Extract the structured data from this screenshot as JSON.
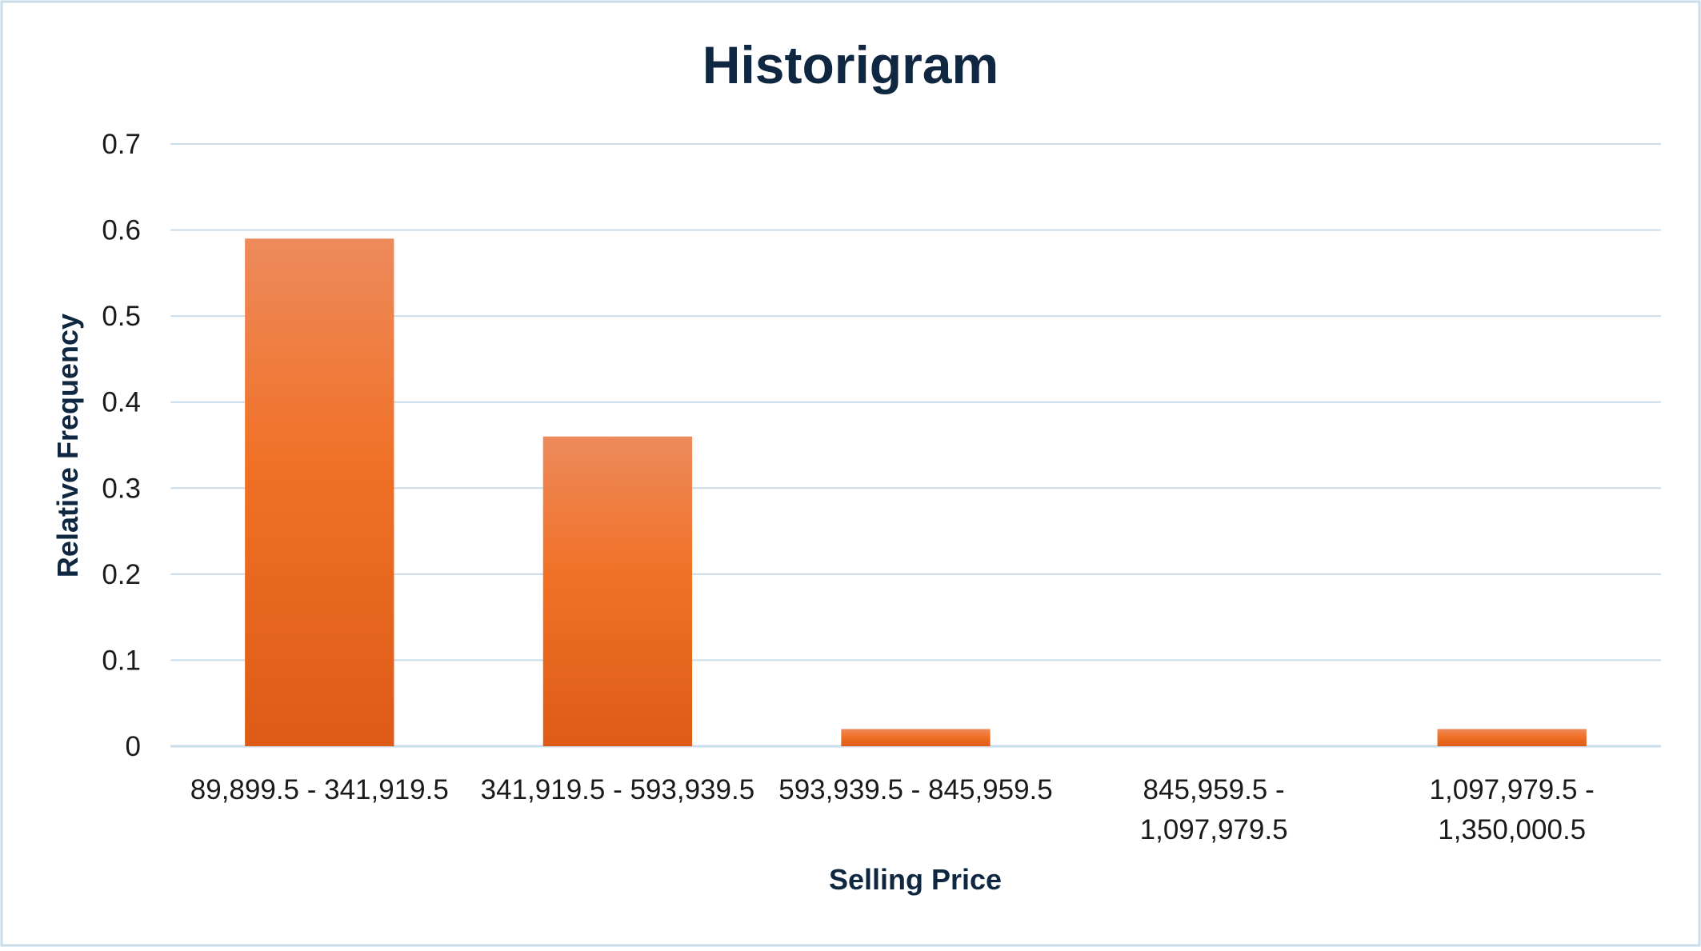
{
  "chart_data": {
    "type": "bar",
    "title": "Historigram",
    "xlabel": "Selling Price",
    "ylabel": "Relative Frequency",
    "categories": [
      [
        "89,899.5 - 341,919.5"
      ],
      [
        "341,919.5 - 593,939.5"
      ],
      [
        "593,939.5 - 845,959.5"
      ],
      [
        "845,959.5 -",
        "1,097,979.5"
      ],
      [
        "1,097,979.5 -",
        "1,350,000.5"
      ]
    ],
    "values": [
      0.59,
      0.36,
      0.02,
      0,
      0.02
    ],
    "ylim": [
      0,
      0.7
    ],
    "yticks": [
      "0",
      "0.1",
      "0.2",
      "0.3",
      "0.4",
      "0.5",
      "0.6",
      "0.7"
    ],
    "grid": true,
    "legend": "none",
    "colors": {
      "bar_top": "#ee8a5c",
      "bar_mid": "#f07126",
      "bar_bottom": "#de5b17",
      "grid": "#c9dcea",
      "frame": "#c9dcea"
    }
  }
}
